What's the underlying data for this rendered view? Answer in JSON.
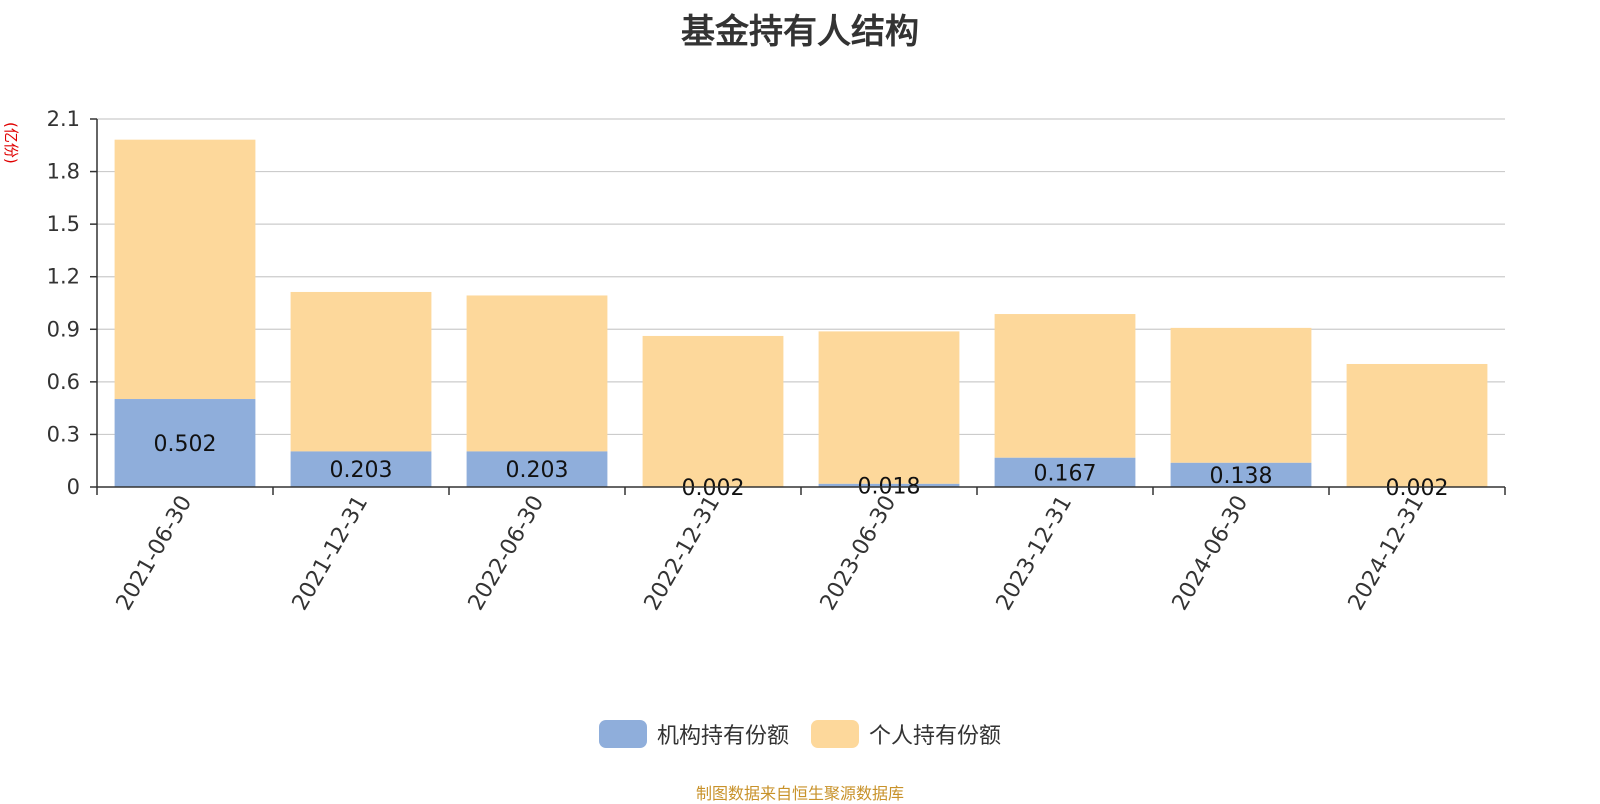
{
  "chart_data": {
    "type": "bar",
    "stacked": true,
    "title": "基金持有人结构",
    "ylabel": "(亿份)",
    "xlabel": "",
    "ylim": [
      0,
      2.1
    ],
    "yticks": [
      "0",
      "0.3",
      "0.6",
      "0.9",
      "1.2",
      "1.5",
      "1.8",
      "2.1"
    ],
    "grid": true,
    "legend_position": "bottom",
    "categories": [
      "2021-06-30",
      "2021-12-31",
      "2022-06-30",
      "2022-12-31",
      "2023-06-30",
      "2023-12-31",
      "2024-06-30",
      "2024-12-31"
    ],
    "series": [
      {
        "name": "机构持有份额",
        "color": "#8faedb",
        "values": [
          0.502,
          0.203,
          0.203,
          0.002,
          0.018,
          0.167,
          0.138,
          0.002
        ],
        "labels": [
          "0.502",
          "0.203",
          "0.203",
          "0.002",
          "0.018",
          "0.167",
          "0.138",
          "0.002"
        ]
      },
      {
        "name": "个人持有份额",
        "color": "#fdd89b",
        "values": [
          1.48,
          0.91,
          0.89,
          0.86,
          0.87,
          0.82,
          0.77,
          0.7
        ]
      }
    ]
  },
  "source": "制图数据来自恒生聚源数据库"
}
